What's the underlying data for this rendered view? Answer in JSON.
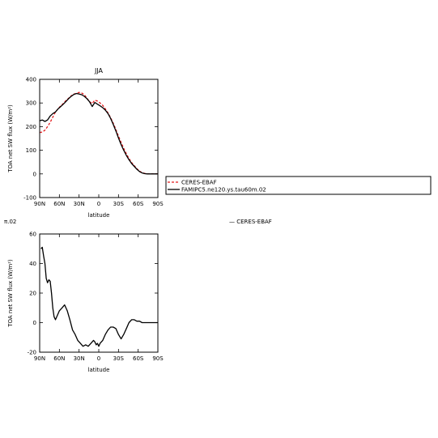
{
  "chart_data": [
    {
      "type": "line",
      "title": "JJA",
      "xlabel": "latitude",
      "ylabel": "TOA net SW flux (W/m²)",
      "ylim": [
        -100,
        400
      ],
      "yticks": [
        -100,
        0,
        100,
        200,
        300,
        400
      ],
      "xlim": [
        90,
        -90
      ],
      "xticks": [
        90,
        60,
        30,
        0,
        -30,
        -60,
        -90
      ],
      "xtick_labels": [
        "90N",
        "60N",
        "30N",
        "0",
        "30S",
        "60S",
        "90S"
      ],
      "grid": false,
      "legend": "right",
      "series": [
        {
          "name": "CERES-EBAF",
          "color": "#e41a1c",
          "dash": "dashed",
          "x": [
            90,
            86,
            82,
            78,
            74,
            70,
            66,
            62,
            58,
            54,
            50,
            46,
            42,
            38,
            34,
            30,
            26,
            22,
            18,
            14,
            10,
            6,
            2,
            -2,
            -6,
            -10,
            -14,
            -18,
            -22,
            -26,
            -30,
            -34,
            -38,
            -42,
            -46,
            -50,
            -54,
            -58,
            -62,
            -66,
            -70,
            -74,
            -78,
            -82,
            -86,
            -90
          ],
          "values": [
            175,
            177,
            185,
            200,
            218,
            240,
            262,
            275,
            288,
            298,
            310,
            320,
            330,
            338,
            340,
            345,
            342,
            335,
            320,
            305,
            298,
            312,
            308,
            300,
            290,
            275,
            258,
            238,
            215,
            188,
            160,
            133,
            108,
            85,
            65,
            48,
            35,
            22,
            12,
            5,
            2,
            0,
            0,
            0,
            0,
            0
          ]
        },
        {
          "name": "FAMIPC5.ne120.ys.tau60m.02",
          "color": "#000000",
          "dash": "solid",
          "x": [
            90,
            86,
            82,
            78,
            74,
            70,
            66,
            62,
            58,
            54,
            50,
            46,
            42,
            38,
            34,
            30,
            26,
            22,
            18,
            14,
            10,
            6,
            2,
            -2,
            -6,
            -10,
            -14,
            -18,
            -22,
            -26,
            -30,
            -34,
            -38,
            -42,
            -46,
            -50,
            -54,
            -58,
            -62,
            -66,
            -70,
            -74,
            -78,
            -82,
            -86,
            -90
          ],
          "values": [
            225,
            228,
            222,
            228,
            245,
            255,
            262,
            275,
            285,
            295,
            306,
            318,
            328,
            336,
            340,
            338,
            335,
            328,
            318,
            305,
            285,
            302,
            295,
            288,
            280,
            270,
            255,
            235,
            210,
            182,
            152,
            124,
            100,
            78,
            60,
            44,
            32,
            20,
            10,
            4,
            1,
            0,
            0,
            0,
            0,
            0
          ]
        }
      ]
    },
    {
      "type": "line",
      "title": "",
      "xlabel": "latitude",
      "ylabel": "TOA net SW flux (W/m²)",
      "ylim": [
        -20,
        60
      ],
      "yticks": [
        -20,
        0,
        20,
        40,
        60
      ],
      "xlim": [
        90,
        -90
      ],
      "xticks": [
        90,
        60,
        30,
        0,
        -30,
        -60,
        -90
      ],
      "xtick_labels": [
        "90N",
        "60N",
        "30N",
        "0",
        "30S",
        "60S",
        "90S"
      ],
      "grid": false,
      "series": [
        {
          "color": "#000000",
          "dash": "solid",
          "x": [
            88,
            86,
            84,
            82,
            80,
            78,
            76,
            74,
            72,
            70,
            68,
            66,
            64,
            62,
            60,
            56,
            52,
            48,
            44,
            40,
            36,
            32,
            28,
            24,
            20,
            16,
            12,
            8,
            6,
            4,
            2,
            0,
            -2,
            -6,
            -10,
            -14,
            -18,
            -22,
            -26,
            -30,
            -34,
            -38,
            -42,
            -46,
            -50,
            -54,
            -58,
            -62,
            -66,
            -70,
            -74,
            -78,
            -82,
            -86,
            -90
          ],
          "values": [
            50,
            51,
            45,
            40,
            30,
            27,
            29,
            28,
            20,
            10,
            4,
            2,
            4,
            6,
            8,
            10,
            12,
            8,
            2,
            -5,
            -8,
            -12,
            -14,
            -16,
            -15,
            -16,
            -14,
            -12,
            -13,
            -15,
            -14,
            -16,
            -14,
            -12,
            -8,
            -5,
            -3,
            -3,
            -4,
            -8,
            -11,
            -8,
            -4,
            0,
            2,
            2,
            1,
            1,
            0,
            0,
            0,
            0,
            0,
            0,
            0
          ]
        }
      ]
    }
  ],
  "labels": {
    "top_left_fragment": "π.02",
    "orphan_legend": "— CERES-EBAF"
  }
}
